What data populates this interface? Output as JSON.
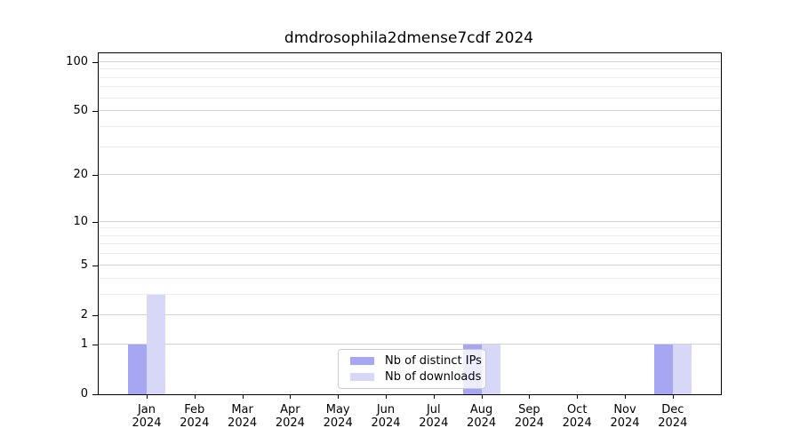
{
  "chart_data": {
    "type": "bar",
    "title": "dmdrosophila2dmense7cdf 2024",
    "categories": [
      {
        "month": "Jan",
        "year": "2024"
      },
      {
        "month": "Feb",
        "year": "2024"
      },
      {
        "month": "Mar",
        "year": "2024"
      },
      {
        "month": "Apr",
        "year": "2024"
      },
      {
        "month": "May",
        "year": "2024"
      },
      {
        "month": "Jun",
        "year": "2024"
      },
      {
        "month": "Jul",
        "year": "2024"
      },
      {
        "month": "Aug",
        "year": "2024"
      },
      {
        "month": "Sep",
        "year": "2024"
      },
      {
        "month": "Oct",
        "year": "2024"
      },
      {
        "month": "Nov",
        "year": "2024"
      },
      {
        "month": "Dec",
        "year": "2024"
      }
    ],
    "series": [
      {
        "name": "Nb of distinct IPs",
        "color": "#a6a6f3",
        "values": [
          1,
          0,
          0,
          0,
          0,
          0,
          0,
          1,
          0,
          0,
          0,
          1
        ]
      },
      {
        "name": "Nb of downloads",
        "color": "#d7d7f8",
        "values": [
          3,
          0,
          0,
          0,
          0,
          0,
          0,
          1,
          0,
          0,
          0,
          1
        ]
      }
    ],
    "y_axis": {
      "scale": "log1p",
      "ticks": [
        0,
        1,
        2,
        5,
        10,
        20,
        50,
        100
      ],
      "minor_gridlines": [
        3,
        4,
        6,
        7,
        8,
        9,
        30,
        40,
        60,
        70,
        80,
        90
      ],
      "max": 113
    },
    "legend": {
      "position": "lower center"
    },
    "colors": {
      "major_grid": "#d2d2d2",
      "minor_grid": "#ececec",
      "axis": "#000000"
    }
  }
}
